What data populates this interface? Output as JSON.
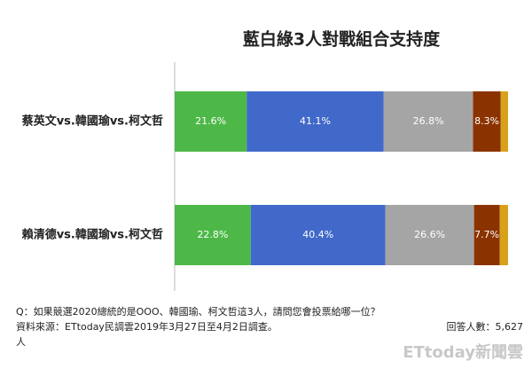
{
  "chart_data": {
    "type": "stacked-bar-horizontal",
    "title": "藍白綠3人對戰組合支持度",
    "categories": [
      "蔡英文vs.韓國瑜vs.柯文哲",
      "賴清德vs.韓國瑜vs.柯文哲"
    ],
    "series": [
      {
        "color": "#4db848",
        "values": [
          21.6,
          22.8
        ],
        "value_labels": [
          "21.6%",
          "22.8%"
        ]
      },
      {
        "color": "#4169c9",
        "values": [
          41.1,
          40.4
        ],
        "value_labels": [
          "41.1%",
          "40.4%"
        ]
      },
      {
        "color": "#a5a5a5",
        "values": [
          26.8,
          26.6
        ],
        "value_labels": [
          "26.8%",
          "26.6%"
        ]
      },
      {
        "color": "#8b3300",
        "values": [
          8.3,
          7.7
        ],
        "value_labels": [
          "8.3%",
          "7.7%"
        ]
      },
      {
        "color": "#d9a11a",
        "values": [
          2.2,
          2.5
        ],
        "value_labels": [
          null,
          null
        ]
      }
    ],
    "xlim": [
      0,
      100
    ],
    "annotations": [
      "Q：如果競選2020總統的是OOO、韓國瑜、柯文哲這3人，請問您會投票給哪一位？",
      "資料來源：ETtoday民調雲2019年3月27日至4月2日調查。",
      "人",
      "回答人數：5,627"
    ],
    "watermark": "ETtoday新聞雲"
  }
}
